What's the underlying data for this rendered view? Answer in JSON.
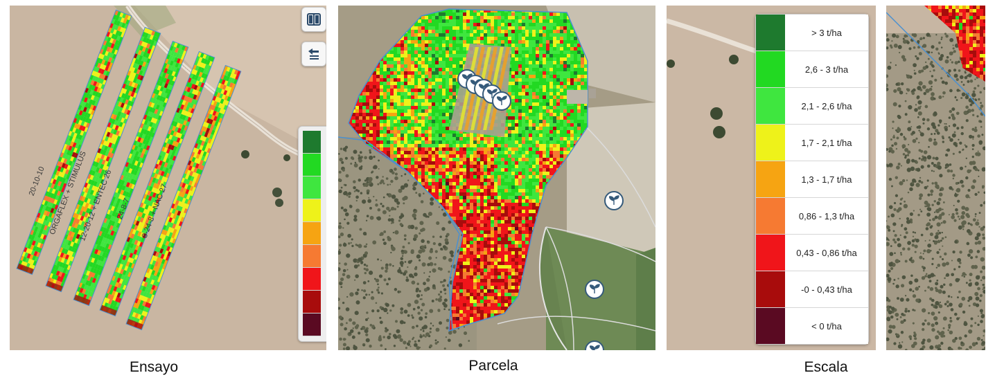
{
  "captions": {
    "left": "Ensayo",
    "middle": "Parcela",
    "right": "Escala"
  },
  "trial_strips": [
    {
      "label": "20-10-10"
    },
    {
      "label": "ORGAFLEX + STIMULUS"
    },
    {
      "label": "12-20-12 + ENTEC 26"
    },
    {
      "label": "24-8-7"
    },
    {
      "label": "8-24-8 + NAC 27"
    }
  ],
  "legend": {
    "items": [
      {
        "label": "> 3 t/ha",
        "color": "#1e7a2e"
      },
      {
        "label": "2,6 - 3 t/ha",
        "color": "#22d922"
      },
      {
        "label": "2,1 - 2,6 t/ha",
        "color": "#3fe63f"
      },
      {
        "label": "1,7 - 2,1 t/ha",
        "color": "#eef21a"
      },
      {
        "label": "1,3 - 1,7 t/ha",
        "color": "#f6a412"
      },
      {
        "label": "0,86 - 1,3 t/ha",
        "color": "#f67a32"
      },
      {
        "label": "0,43 - 0,86 t/ha",
        "color": "#f0151a"
      },
      {
        "label": "-0 - 0,43 t/ha",
        "color": "#a80c0c"
      },
      {
        "label": "< 0 t/ha",
        "color": "#5a0a22"
      }
    ]
  },
  "icons": {
    "split_view": "split-view-icon",
    "layers": "layers-icon",
    "plant_marker": "plant-marker-icon"
  }
}
